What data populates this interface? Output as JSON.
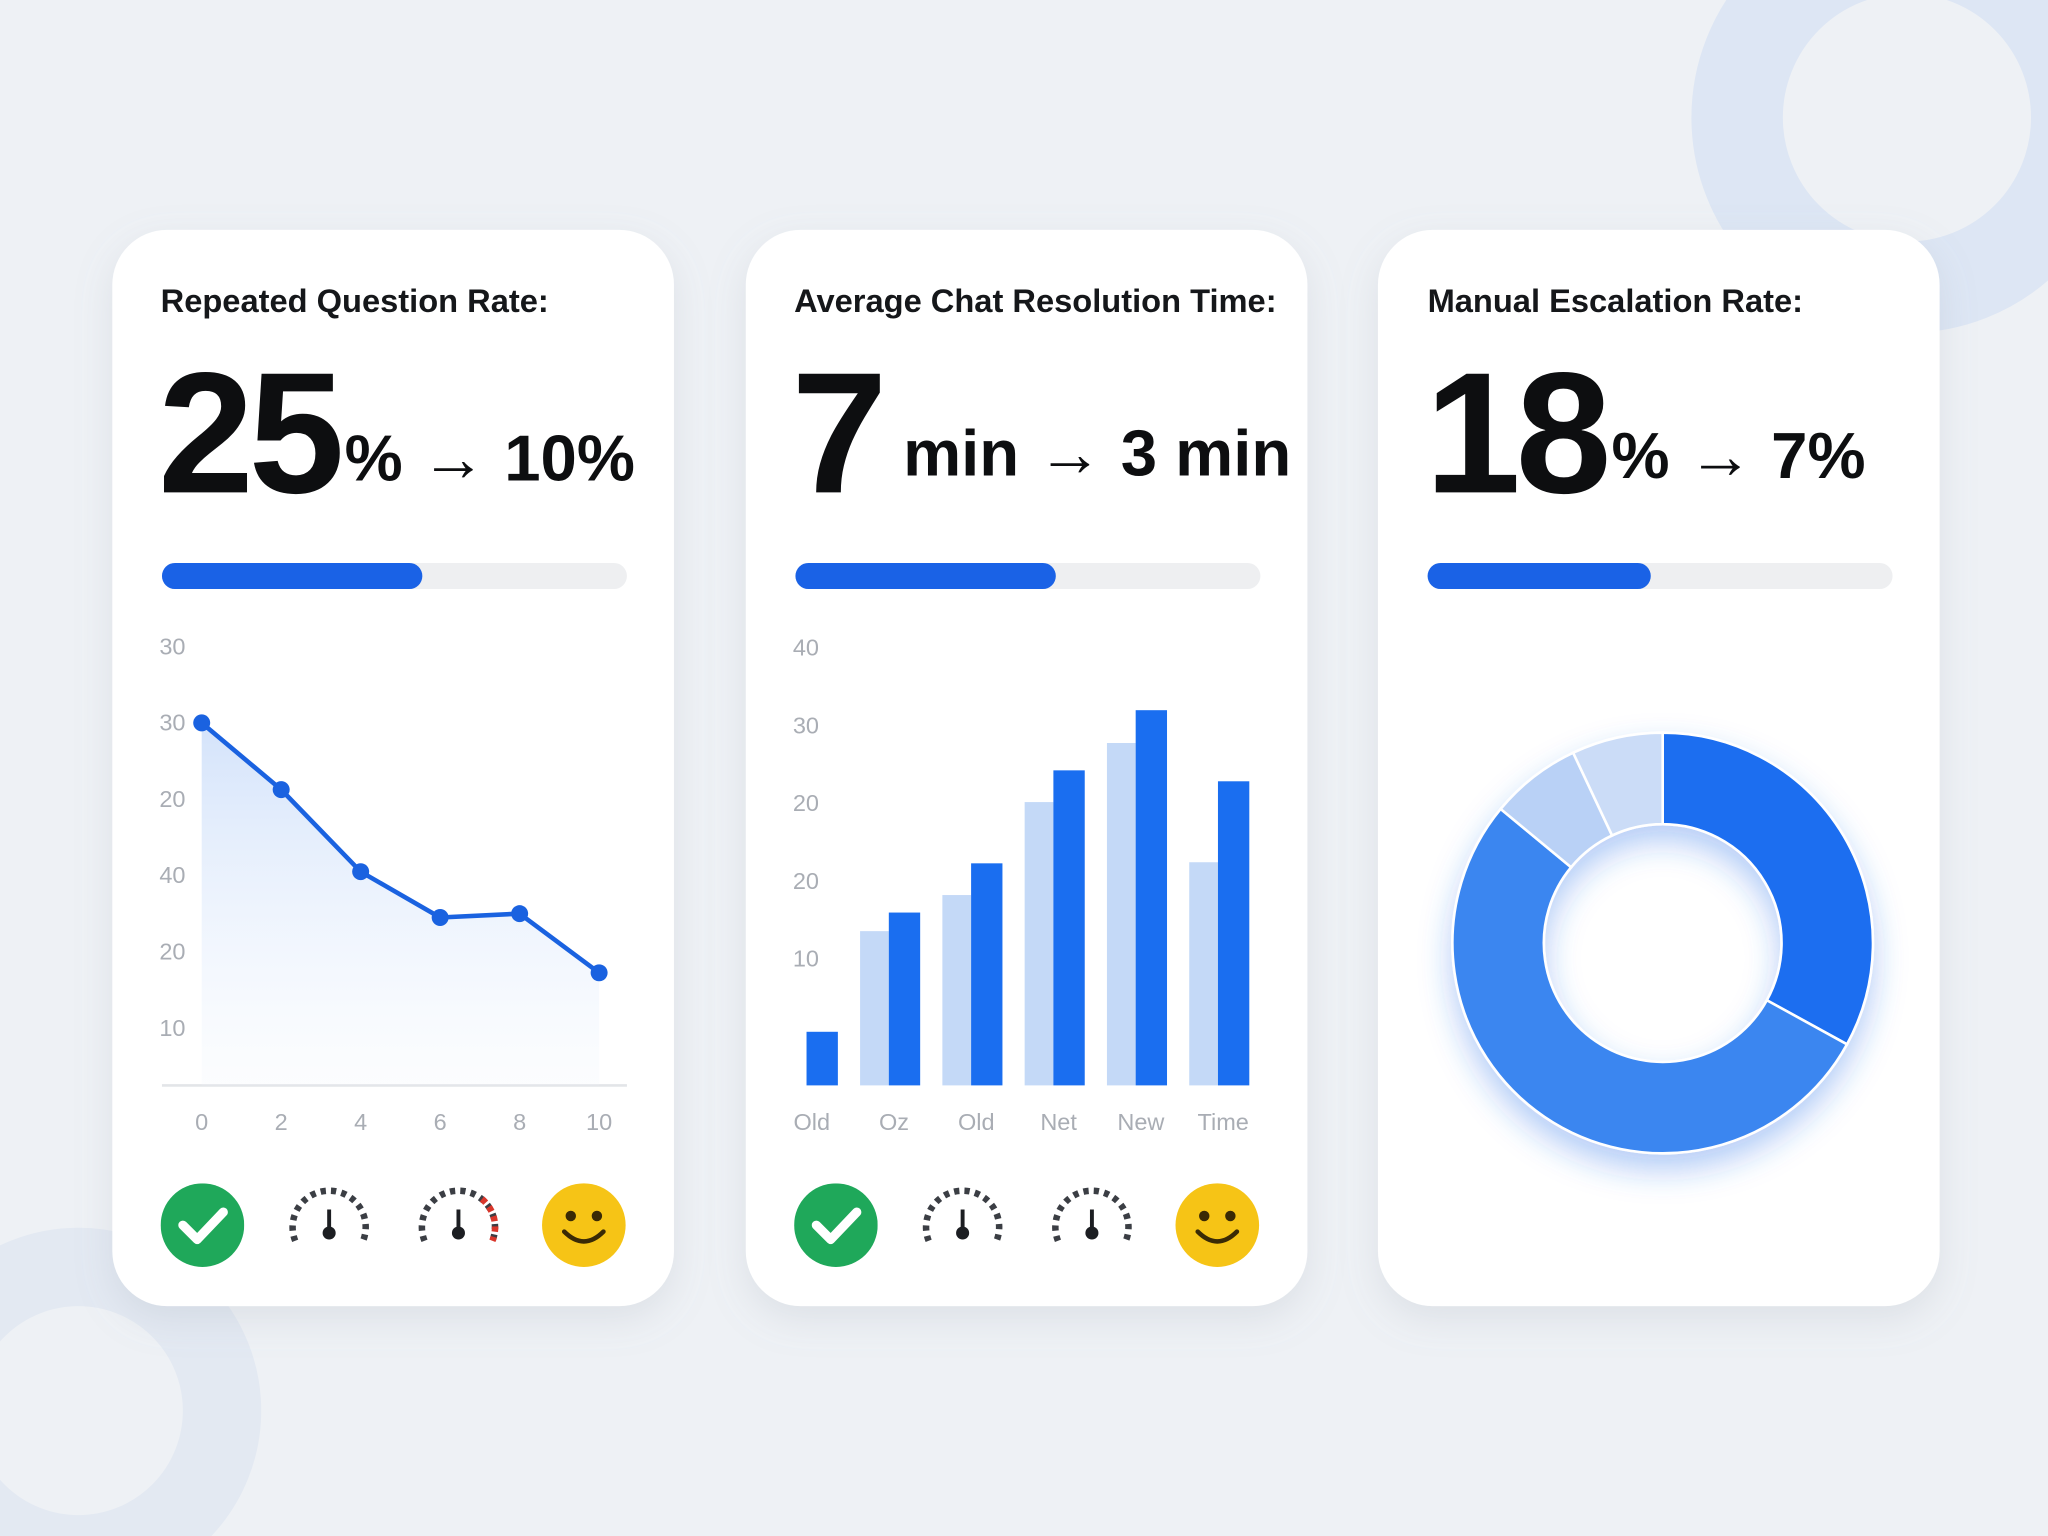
{
  "cards": [
    {
      "title": "Repeated Question Rate:",
      "value": "25",
      "change": "% → 10%",
      "progress": 56
    },
    {
      "title": "Average Chat Resolution Time:",
      "value": "7",
      "change": "min → 3 min",
      "progress": 56
    },
    {
      "title": "Manual Escalation Rate:",
      "value": "18",
      "change": "% → 7%",
      "progress": 48
    }
  ],
  "chart_data": [
    {
      "type": "line",
      "x": [
        0,
        2,
        4,
        6,
        8,
        10
      ],
      "values": [
        26.0,
        22.5,
        18.2,
        15.8,
        16.0,
        12.9
      ],
      "color": "#1a62e0",
      "xlim": [
        -1,
        10.7
      ],
      "xticks": [
        0,
        2,
        4,
        6,
        8,
        10
      ],
      "ylim": [
        7,
        30
      ],
      "y_labels": [
        "30",
        "30",
        "20",
        "40",
        "20",
        "10"
      ]
    },
    {
      "type": "bar",
      "categories": [
        "Old",
        "Oz",
        "Old",
        "Net",
        "New",
        "Time"
      ],
      "series": [
        {
          "color": "#c4d9f7",
          "values": [
            null,
            14.1,
            17.4,
            25.9,
            31.3,
            20.4
          ]
        },
        {
          "color": "#1a6ef0",
          "values": [
            4.9,
            15.8,
            20.3,
            28.8,
            34.3,
            27.8
          ]
        }
      ],
      "ylim": [
        0,
        40
      ],
      "y_labels": [
        "40",
        "30",
        "20",
        "20",
        "10"
      ]
    },
    {
      "type": "pie",
      "values": [
        33,
        53,
        7,
        7
      ],
      "colors": [
        "#1a6ef0",
        "#3b86f0",
        "#b9d1f6",
        "#cbdcf7"
      ]
    }
  ]
}
